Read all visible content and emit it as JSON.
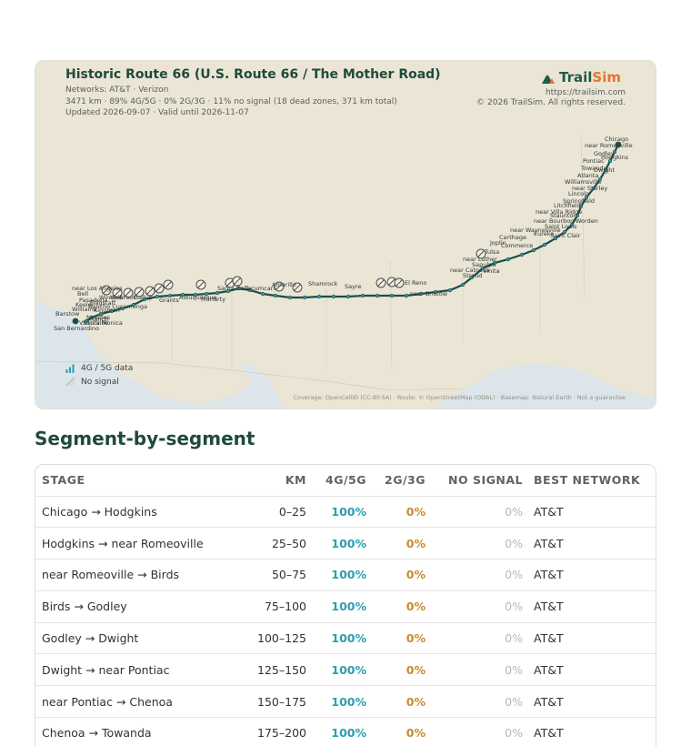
{
  "map": {
    "title": "Historic Route 66 (U.S. Route 66 / The Mother Road)",
    "networks": "Networks: AT&T · Verizon",
    "stats": "3471 km · 89% 4G/5G · 0% 2G/3G · 11% no signal (18 dead zones, 371 km total)",
    "updated": "Updated 2026-09-07 · Valid until 2026-11-07",
    "brand_name_main": "Trail",
    "brand_name_accent": "Sim",
    "brand_url": "https://trailsim.com",
    "brand_copyright": "© 2026 TrailSim. All rights reserved.",
    "legend": [
      {
        "icon": "signal-bars-icon",
        "label": "4G / 5G data"
      },
      {
        "icon": "no-signal-icon",
        "label": "No signal"
      }
    ],
    "attribution": "Coverage: OpenCellID (CC-BY-SA) · Route: © OpenStreetMap (ODbL) · Basemap: Natural Earth · Not a guarantee",
    "town_labels": [
      "Chicago",
      "near Romeoville",
      "Godley",
      "Hodgkins",
      "Pontiac",
      "Towanda",
      "Dwight",
      "Atlanta",
      "Williamsville",
      "near Shirley",
      "Lincoln",
      "Springfield",
      "Litchfield",
      "near Villa Ridge",
      "Staunton",
      "near Bourbon",
      "Worden",
      "Saint Louis",
      "near Waynesville",
      "Eureka",
      "Carthage",
      "Saint Clair",
      "Joplin",
      "Commerce",
      "Tulsa",
      "near Luther",
      "Sapulpa",
      "Vinita",
      "Stroud",
      "near Catoosa",
      "El Reno",
      "near Bristow",
      "Sayre",
      "Shamrock",
      "Amarillo",
      "Tucumcari",
      "Santa Rosa",
      "Moriarty",
      "Albuquerque",
      "Grants",
      "Gallup",
      "Holbrook",
      "Winslow",
      "Flagstaff",
      "Williams",
      "Kingman",
      "Needles",
      "Barstow",
      "Victorville",
      "near Los Angeles",
      "Pasadena",
      "Rancho Cucamonga",
      "Santa Monica",
      "San Bernardino",
      "Bell",
      "Ranch",
      "Keeler"
    ],
    "colors": {
      "route": "#1e4d46",
      "land": "#ebe5d6",
      "water": "#dce6ea",
      "brand": "#1f5c49",
      "accent": "#e8752b"
    }
  },
  "section": {
    "title": "Segment-by-segment"
  },
  "table": {
    "headers": {
      "stage": "STAGE",
      "km": "KM",
      "g45": "4G/5G",
      "g23": "2G/3G",
      "none": "NO SIGNAL",
      "network": "BEST NETWORK"
    },
    "rows": [
      {
        "stage": "Chicago → Hodgkins",
        "km": "0–25",
        "g45": "100%",
        "g23": "0%",
        "none": "0%",
        "network": "AT&T"
      },
      {
        "stage": "Hodgkins → near Romeoville",
        "km": "25–50",
        "g45": "100%",
        "g23": "0%",
        "none": "0%",
        "network": "AT&T"
      },
      {
        "stage": "near Romeoville → Birds",
        "km": "50–75",
        "g45": "100%",
        "g23": "0%",
        "none": "0%",
        "network": "AT&T"
      },
      {
        "stage": "Birds → Godley",
        "km": "75–100",
        "g45": "100%",
        "g23": "0%",
        "none": "0%",
        "network": "AT&T"
      },
      {
        "stage": "Godley → Dwight",
        "km": "100–125",
        "g45": "100%",
        "g23": "0%",
        "none": "0%",
        "network": "AT&T"
      },
      {
        "stage": "Dwight → near Pontiac",
        "km": "125–150",
        "g45": "100%",
        "g23": "0%",
        "none": "0%",
        "network": "AT&T"
      },
      {
        "stage": "near Pontiac → Chenoa",
        "km": "150–175",
        "g45": "100%",
        "g23": "0%",
        "none": "0%",
        "network": "AT&T"
      },
      {
        "stage": "Chenoa → Towanda",
        "km": "175–200",
        "g45": "100%",
        "g23": "0%",
        "none": "0%",
        "network": "AT&T"
      }
    ]
  }
}
